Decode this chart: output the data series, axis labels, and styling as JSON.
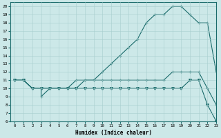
{
  "title": "",
  "xlabel": "Humidex (Indice chaleur)",
  "xlim": [
    -0.5,
    23
  ],
  "ylim": [
    6,
    20.5
  ],
  "xticks": [
    0,
    1,
    2,
    3,
    4,
    5,
    6,
    7,
    8,
    9,
    10,
    11,
    12,
    13,
    14,
    15,
    16,
    17,
    18,
    19,
    20,
    21,
    22,
    23
  ],
  "yticks": [
    6,
    7,
    8,
    9,
    10,
    11,
    12,
    13,
    14,
    15,
    16,
    17,
    18,
    19,
    20
  ],
  "background_color": "#cce8e8",
  "line_color": "#1a6b6b",
  "line1_x": [
    0,
    1,
    2,
    3,
    3,
    4,
    5,
    6,
    7,
    8,
    9,
    10,
    11,
    12,
    13,
    14,
    15,
    16,
    17,
    18,
    19,
    20,
    21,
    22,
    23
  ],
  "line1_y": [
    11,
    11,
    10,
    10,
    9,
    10,
    10,
    10,
    11,
    11,
    11,
    12,
    13,
    14,
    15,
    16,
    18,
    19,
    19,
    20,
    20,
    19,
    18,
    18,
    12
  ],
  "line2_x": [
    0,
    1,
    2,
    3,
    4,
    5,
    6,
    7,
    8,
    9,
    10,
    11,
    12,
    13,
    14,
    15,
    16,
    17,
    18,
    19,
    20,
    21,
    22,
    23
  ],
  "line2_y": [
    11,
    11,
    10,
    10,
    10,
    10,
    10,
    10,
    11,
    11,
    11,
    11,
    11,
    11,
    11,
    11,
    11,
    11,
    12,
    12,
    12,
    12,
    10,
    8
  ],
  "line3_x": [
    0,
    1,
    2,
    3,
    4,
    5,
    6,
    7,
    8,
    9,
    10,
    11,
    12,
    13,
    14,
    15,
    16,
    17,
    18,
    19,
    20,
    21,
    22,
    23
  ],
  "line3_y": [
    11,
    11,
    10,
    10,
    10,
    10,
    10,
    10,
    10,
    10,
    10,
    10,
    10,
    10,
    10,
    10,
    10,
    10,
    10,
    10,
    11,
    11,
    8,
    6
  ],
  "figsize": [
    3.2,
    2.0
  ],
  "dpi": 100
}
